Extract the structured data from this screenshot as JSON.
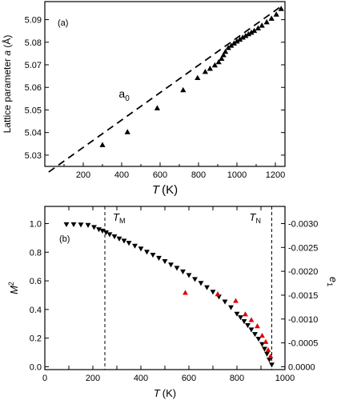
{
  "chart_data": [
    {
      "type": "scatter",
      "panel_label": "(a)",
      "xlabel": "T (K)",
      "xlabel_var": "T",
      "xlabel_unit": "(K)",
      "ylabel": "Lattice parameter a (Å)",
      "ylabel_pre": "Lattice parameter ",
      "ylabel_var": "a",
      "ylabel_unit": " (Å)",
      "xlim": [
        0,
        1250
      ],
      "ylim": [
        5.025,
        5.098
      ],
      "xticks": [
        200,
        400,
        600,
        800,
        1000,
        1200
      ],
      "yticks": [
        5.03,
        5.04,
        5.05,
        5.06,
        5.07,
        5.08,
        5.09
      ],
      "grid": false,
      "series": [
        {
          "marker": "triangle-up",
          "color": "#000000",
          "x": [
            300,
            430,
            585,
            720,
            795,
            835,
            860,
            885,
            905,
            920,
            930,
            940,
            955,
            970,
            985,
            1000,
            1015,
            1030,
            1045,
            1060,
            1075,
            1090,
            1110,
            1130,
            1155,
            1180,
            1205,
            1230
          ],
          "y": [
            5.0345,
            5.0402,
            5.0508,
            5.0588,
            5.0642,
            5.0669,
            5.0683,
            5.0698,
            5.0712,
            5.0727,
            5.0743,
            5.0758,
            5.0775,
            5.0785,
            5.0795,
            5.0804,
            5.0812,
            5.0821,
            5.0828,
            5.0836,
            5.0843,
            5.0851,
            5.0862,
            5.0874,
            5.0889,
            5.0905,
            5.0923,
            5.0948
          ]
        }
      ],
      "reference_line": {
        "label": "a",
        "label_sub": "0",
        "style": "dashed",
        "color": "#000000",
        "x": [
          20,
          1240
        ],
        "y": [
          5.0225,
          5.0965
        ]
      }
    },
    {
      "type": "scatter",
      "panel_label": "(b)",
      "xlabel": "T (K)",
      "xlabel_var": "T",
      "xlabel_unit": "(K)",
      "ylabel": "M2",
      "ylabel_var": "M",
      "ylabel_sup": "2",
      "y2label": "e1",
      "y2label_var": "e",
      "y2label_sub": "1",
      "xlim": [
        0,
        1000
      ],
      "ylim": [
        -0.02,
        1.12
      ],
      "y2lim": [
        6e-05,
        -0.00336
      ],
      "xticks": [
        0,
        100,
        200,
        300,
        400,
        500,
        600,
        700,
        800,
        900,
        1000
      ],
      "yticks": [
        0.0,
        0.2,
        0.4,
        0.6,
        0.8,
        1.0
      ],
      "y2ticks": [
        0.0,
        -0.0005,
        -0.001,
        -0.0015,
        -0.002,
        -0.0025,
        -0.003
      ],
      "y2tick_labels": [
        "0.0000",
        "-0.0005",
        "-0.0010",
        "-0.0015",
        "-0.0020",
        "-0.0025",
        "-0.0030"
      ],
      "grid": false,
      "vlines": [
        {
          "x": 250,
          "label": "T",
          "label_sub": "M",
          "style": "dashed"
        },
        {
          "x": 945,
          "label": "T",
          "label_sub": "N",
          "style": "dashed"
        }
      ],
      "series": [
        {
          "marker": "triangle-down",
          "color": "#000000",
          "axis": "left",
          "x": [
            90,
            120,
            150,
            180,
            205,
            225,
            240,
            255,
            270,
            290,
            310,
            330,
            350,
            375,
            400,
            425,
            450,
            475,
            500,
            525,
            550,
            575,
            600,
            625,
            650,
            675,
            700,
            725,
            750,
            775,
            800,
            815,
            830,
            845,
            860,
            875,
            890,
            905,
            915,
            925,
            935,
            945
          ],
          "y": [
            0.995,
            0.995,
            0.993,
            0.99,
            0.975,
            0.96,
            0.95,
            0.938,
            0.925,
            0.91,
            0.895,
            0.88,
            0.865,
            0.845,
            0.825,
            0.803,
            0.782,
            0.76,
            0.737,
            0.713,
            0.69,
            0.665,
            0.64,
            0.612,
            0.585,
            0.555,
            0.523,
            0.49,
            0.455,
            0.415,
            0.37,
            0.345,
            0.318,
            0.29,
            0.26,
            0.228,
            0.195,
            0.158,
            0.125,
            0.09,
            0.05,
            0.015
          ]
        },
        {
          "marker": "triangle-up",
          "color": "#e00000",
          "axis": "right",
          "x": [
            585,
            720,
            795,
            835,
            860,
            885,
            905,
            920,
            930,
            940
          ],
          "y": [
            -0.00155,
            -0.00152,
            -0.00138,
            -0.0011,
            -0.00098,
            -0.00085,
            -0.00065,
            -0.00052,
            -0.00035,
            -0.00022
          ]
        }
      ]
    }
  ]
}
